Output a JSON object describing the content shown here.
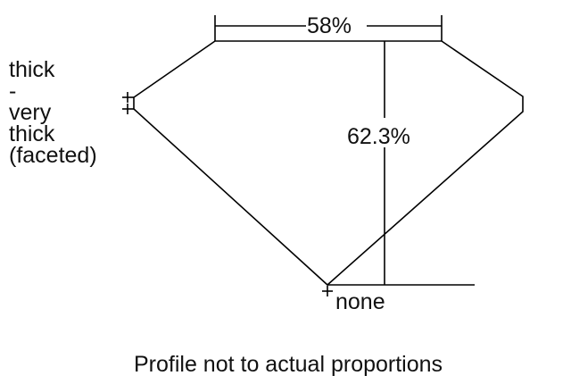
{
  "girdle_label": [
    "thick",
    "-",
    "very",
    "thick",
    "(faceted)"
  ],
  "table_percent": "58%",
  "depth_percent": "62.3%",
  "culet_label": "none",
  "caption": "Profile not to actual proportions",
  "line_color": "#000000"
}
